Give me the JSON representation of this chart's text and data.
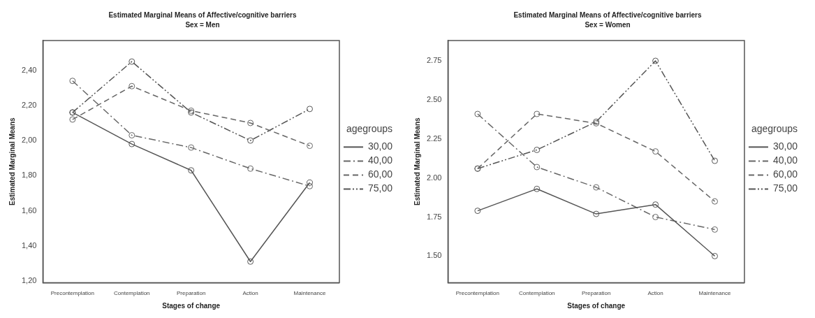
{
  "chart_data": [
    {
      "type": "line",
      "title": "Estimated Marginal Means of Affective/cognitive barriers",
      "subtitle": "Sex = Men",
      "xlabel": "Stages of change",
      "ylabel": "Estimated Marginal Means",
      "legend_title": "agegroups",
      "legend": "right",
      "marker": "circle",
      "grid": false,
      "categories": [
        "Precontemplation",
        "Contemplation",
        "Preparation",
        "Action",
        "Maintenance"
      ],
      "ylim": [
        1.19,
        2.57
      ],
      "yticks": [
        {
          "value": 1.2,
          "label": "1,20"
        },
        {
          "value": 1.4,
          "label": "1,40"
        },
        {
          "value": 1.6,
          "label": "1,60"
        },
        {
          "value": 1.8,
          "label": "1,80"
        },
        {
          "value": 2.0,
          "label": "2,00"
        },
        {
          "value": 2.2,
          "label": "2,20"
        },
        {
          "value": 2.4,
          "label": "2,40"
        }
      ],
      "series": [
        {
          "name": "30,00",
          "color": "#555555",
          "line_style": "solid",
          "values": [
            2.16,
            1.98,
            1.83,
            1.31,
            1.76
          ]
        },
        {
          "name": "40,00",
          "color": "#666666",
          "line_style": "dashdot",
          "values": [
            2.34,
            2.03,
            1.96,
            1.84,
            1.74
          ]
        },
        {
          "name": "60,00",
          "color": "#666666",
          "line_style": "dashed",
          "values": [
            2.12,
            2.31,
            2.17,
            2.1,
            1.97
          ]
        },
        {
          "name": "75,00",
          "color": "#555555",
          "line_style": "dashdotdot",
          "values": [
            2.16,
            2.45,
            2.16,
            2.0,
            2.18
          ]
        }
      ]
    },
    {
      "type": "line",
      "title": "Estimated Marginal Means of Affective/cognitive barriers",
      "subtitle": "Sex = Women",
      "xlabel": "Stages of change",
      "ylabel": "Estimated Marginal Means",
      "legend_title": "agegroups",
      "legend": "right",
      "marker": "circle",
      "grid": false,
      "categories": [
        "Precontemplation",
        "Contemplation",
        "Preparation",
        "Action",
        "Maintenance"
      ],
      "ylim": [
        1.33,
        2.88
      ],
      "yticks": [
        {
          "value": 1.5,
          "label": "1.50"
        },
        1.75,
        {
          "value": 2.0,
          "label": "2.00"
        },
        2.25,
        {
          "value": 2.5,
          "label": "2.50"
        },
        2.75
      ],
      "series": [
        {
          "name": "30,00",
          "color": "#555555",
          "line_style": "solid",
          "values": [
            1.79,
            1.93,
            1.77,
            1.83,
            1.5
          ]
        },
        {
          "name": "40,00",
          "color": "#666666",
          "line_style": "dashdot",
          "values": [
            2.41,
            2.07,
            1.94,
            1.75,
            1.67
          ]
        },
        {
          "name": "60,00",
          "color": "#666666",
          "line_style": "dashed",
          "values": [
            2.06,
            2.41,
            2.35,
            2.17,
            1.85
          ]
        },
        {
          "name": "75,00",
          "color": "#555555",
          "line_style": "dashdotdot",
          "values": [
            2.06,
            2.18,
            2.36,
            2.75,
            2.11
          ]
        }
      ]
    }
  ]
}
